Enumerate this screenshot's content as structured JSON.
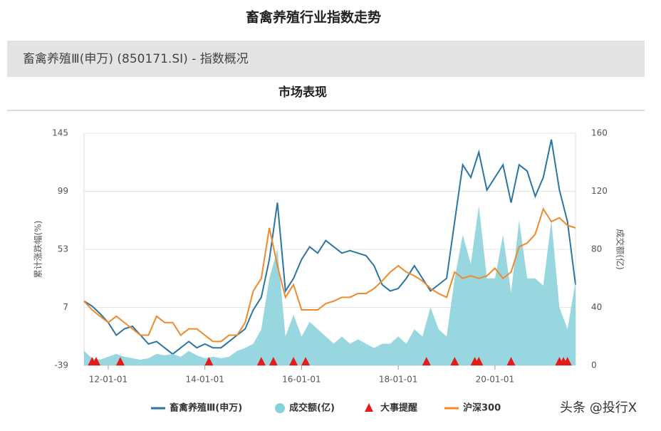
{
  "page_title": "畜禽养殖行业指数走势",
  "header": "畜禽养殖Ⅲ(申万) (850171.SI) - 指数概况",
  "section_title": "市场表现",
  "watermark": "头条 @投行X",
  "chart_data": {
    "type": "line",
    "y_label": "累计涨跌幅(%)",
    "y2_label": "成交额(亿)",
    "x": [
      "11-07-01",
      "11-09-01",
      "11-11-01",
      "12-01-01",
      "12-03-01",
      "12-05-01",
      "12-07-01",
      "12-09-01",
      "12-11-01",
      "13-01-01",
      "13-03-01",
      "13-05-01",
      "13-07-01",
      "13-09-01",
      "13-11-01",
      "14-01-01",
      "14-03-01",
      "14-05-01",
      "14-07-01",
      "14-09-01",
      "14-11-01",
      "15-01-01",
      "15-03-01",
      "15-05-01",
      "15-07-01",
      "15-09-01",
      "15-11-01",
      "16-01-01",
      "16-03-01",
      "16-05-01",
      "16-07-01",
      "16-09-01",
      "16-11-01",
      "17-01-01",
      "17-03-01",
      "17-05-01",
      "17-07-01",
      "17-09-01",
      "17-11-01",
      "18-01-01",
      "18-03-01",
      "18-05-01",
      "18-07-01",
      "18-09-01",
      "18-11-01",
      "19-01-01",
      "19-03-01",
      "19-05-01",
      "19-07-01",
      "19-09-01",
      "19-11-01",
      "20-01-01",
      "20-03-01",
      "20-05-01",
      "20-07-01",
      "20-09-01",
      "20-11-01",
      "21-01-01",
      "21-03-01",
      "21-05-01",
      "21-07-01",
      "21-09-01"
    ],
    "xlim": [
      "11-07-01",
      "21-09-01"
    ],
    "xticks": [
      "12-01-01",
      "14-01-01",
      "16-01-01",
      "18-01-01",
      "20-01-01"
    ],
    "ylim": [
      -39,
      145
    ],
    "yticks": [
      -39,
      7,
      53,
      99,
      145
    ],
    "y2lim": [
      0,
      160
    ],
    "y2ticks": [
      0,
      40,
      80,
      120,
      160
    ],
    "grid": true,
    "series": [
      {
        "name": "畜禽养殖Ⅲ(申万)",
        "color": "#2a75a3",
        "kind": "line",
        "values": [
          12,
          8,
          2,
          -5,
          -15,
          -10,
          -8,
          -15,
          -22,
          -20,
          -25,
          -30,
          -25,
          -20,
          -25,
          -22,
          -25,
          -25,
          -20,
          -15,
          -10,
          5,
          15,
          45,
          90,
          20,
          30,
          45,
          55,
          50,
          60,
          55,
          50,
          52,
          50,
          48,
          40,
          25,
          20,
          22,
          30,
          40,
          30,
          20,
          25,
          30,
          75,
          120,
          110,
          130,
          100,
          110,
          120,
          90,
          120,
          115,
          95,
          110,
          140,
          100,
          75,
          25
        ]
      },
      {
        "name": "成交额(亿)",
        "color": "#86d0da",
        "kind": "area",
        "axis": "y2",
        "values": [
          10,
          5,
          4,
          6,
          8,
          6,
          5,
          4,
          5,
          8,
          7,
          8,
          6,
          10,
          7,
          5,
          6,
          5,
          6,
          10,
          12,
          15,
          25,
          60,
          80,
          20,
          35,
          20,
          30,
          25,
          20,
          15,
          20,
          15,
          18,
          15,
          12,
          15,
          15,
          20,
          15,
          25,
          20,
          40,
          25,
          20,
          60,
          90,
          70,
          110,
          60,
          60,
          90,
          50,
          100,
          60,
          60,
          55,
          100,
          40,
          25,
          58
        ]
      },
      {
        "name": "沪深300",
        "color": "#f0892a",
        "kind": "line",
        "values": [
          12,
          5,
          0,
          -5,
          0,
          -5,
          -10,
          -15,
          -15,
          0,
          -5,
          -5,
          -15,
          -10,
          -10,
          -15,
          -20,
          -20,
          -15,
          -15,
          -5,
          20,
          30,
          70,
          40,
          15,
          25,
          5,
          5,
          5,
          10,
          12,
          15,
          15,
          18,
          18,
          22,
          28,
          35,
          40,
          35,
          32,
          28,
          22,
          18,
          15,
          35,
          30,
          32,
          30,
          32,
          38,
          30,
          35,
          55,
          58,
          65,
          85,
          75,
          78,
          72,
          70
        ]
      }
    ],
    "events": {
      "name": "大事提醒",
      "color": "#e31b1b",
      "x": [
        "11-09-01",
        "11-10-01",
        "12-04-01",
        "14-02-01",
        "15-03-01",
        "15-06-01",
        "15-11-01",
        "16-02-01",
        "18-08-01",
        "19-03-01",
        "19-08-01",
        "19-09-01",
        "20-05-01",
        "21-05-01",
        "21-06-01",
        "21-07-01"
      ]
    }
  }
}
